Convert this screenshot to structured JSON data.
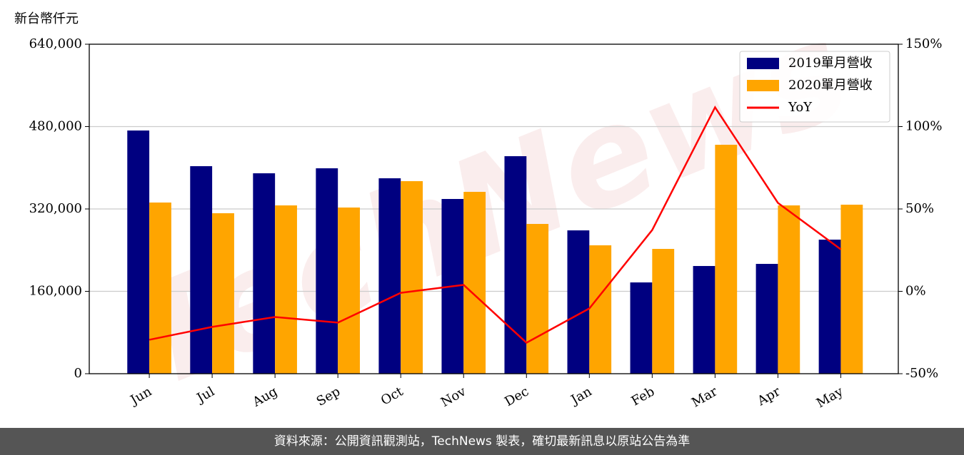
{
  "chart_data": {
    "type": "bar",
    "y_label": "新台幣仟元",
    "watermark": "TechNews",
    "categories": [
      "Jun",
      "Jul",
      "Aug",
      "Sep",
      "Oct",
      "Nov",
      "Dec",
      "Jan",
      "Feb",
      "Mar",
      "Apr",
      "May"
    ],
    "series": [
      {
        "name": "2019單月營收",
        "color": "#000080",
        "values": [
          472400,
          403100,
          389300,
          399000,
          379600,
          339400,
          422500,
          278400,
          177300,
          209200,
          213300,
          260400
        ]
      },
      {
        "name": "2020單月營收",
        "color": "#ffa500",
        "values": [
          332500,
          311700,
          326900,
          322800,
          374000,
          353200,
          290900,
          249400,
          242400,
          444700,
          326900,
          328300
        ]
      },
      {
        "name": "YoY",
        "color": "#ff0000",
        "type": "line",
        "axis": "y2",
        "values": [
          -29.4,
          -21.6,
          -15.6,
          -19.0,
          -0.9,
          3.9,
          -31.2,
          -10.4,
          37.2,
          111.7,
          53.7,
          25.5
        ]
      }
    ],
    "ylim": [
      0,
      640000
    ],
    "yticks": [
      0,
      {
        "value": 160000,
        "label": "160,000"
      },
      {
        "value": 320000,
        "label": "320,000"
      },
      {
        "value": 480000,
        "label": "480,000"
      },
      {
        "value": 640000,
        "label": "640,000"
      }
    ],
    "y2lim": [
      -50,
      150
    ],
    "y2ticks": [
      {
        "value": -50,
        "label": "-50%"
      },
      {
        "value": 0,
        "label": "0%"
      },
      {
        "value": 50,
        "label": "50%"
      },
      {
        "value": 100,
        "label": "100%"
      },
      {
        "value": 150,
        "label": "150%"
      }
    ],
    "grid": true,
    "legend": "upper right"
  },
  "footer": "資料來源：公開資訊觀測站，TechNews 製表，確切最新訊息以原站公告為準"
}
